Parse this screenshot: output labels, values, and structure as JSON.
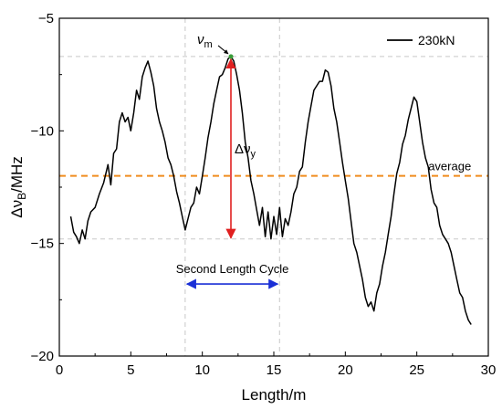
{
  "chart_data": {
    "type": "line",
    "xlabel": "Length/m",
    "ylabel": {
      "prefix": "Δν",
      "sub": "B",
      "suffix": "/MHz"
    },
    "xlim": [
      0,
      30
    ],
    "ylim": [
      -20,
      -5
    ],
    "xticks": [
      0,
      5,
      10,
      15,
      20,
      25,
      30
    ],
    "yticks": [
      -5,
      -10,
      -15,
      -20
    ],
    "grid": false,
    "legend": {
      "position": "top-right",
      "entries": [
        "230kN"
      ]
    },
    "series": [
      {
        "name": "230kN",
        "color": "#000000",
        "x": [
          0.8,
          1.0,
          1.2,
          1.4,
          1.6,
          1.8,
          2.0,
          2.2,
          2.5,
          2.8,
          3.1,
          3.4,
          3.6,
          3.8,
          4.0,
          4.2,
          4.4,
          4.6,
          4.8,
          5.0,
          5.2,
          5.4,
          5.6,
          5.8,
          6.0,
          6.2,
          6.4,
          6.6,
          6.8,
          7.0,
          7.2,
          7.4,
          7.6,
          7.8,
          8.0,
          8.2,
          8.4,
          8.6,
          8.8,
          9.0,
          9.2,
          9.4,
          9.6,
          9.8,
          10.0,
          10.2,
          10.4,
          10.6,
          10.8,
          11.0,
          11.2,
          11.4,
          11.6,
          11.8,
          12.0,
          12.2,
          12.4,
          12.6,
          12.8,
          13.0,
          13.2,
          13.4,
          13.6,
          13.8,
          14.0,
          14.2,
          14.4,
          14.6,
          14.8,
          15.0,
          15.2,
          15.4,
          15.6,
          15.8,
          16.0,
          16.2,
          16.4,
          16.6,
          16.8,
          17.0,
          17.2,
          17.4,
          17.6,
          17.8,
          18.0,
          18.2,
          18.4,
          18.6,
          18.8,
          19.0,
          19.2,
          19.4,
          19.6,
          19.8,
          20.0,
          20.2,
          20.4,
          20.6,
          20.8,
          21.0,
          21.2,
          21.4,
          21.6,
          21.8,
          22.0,
          22.2,
          22.4,
          22.6,
          22.8,
          23.0,
          23.2,
          23.4,
          23.6,
          23.8,
          24.0,
          24.2,
          24.4,
          24.6,
          24.8,
          25.0,
          25.2,
          25.4,
          25.6,
          25.8,
          26.0,
          26.2,
          26.4,
          26.6,
          26.8,
          27.0,
          27.2,
          27.4,
          27.6,
          27.8,
          28.0,
          28.2,
          28.4,
          28.6,
          28.8
        ],
        "y": [
          -13.8,
          -14.5,
          -14.7,
          -15.0,
          -14.4,
          -14.8,
          -14.0,
          -13.6,
          -13.4,
          -12.8,
          -12.3,
          -11.5,
          -12.4,
          -11.0,
          -10.8,
          -9.6,
          -9.2,
          -9.6,
          -9.4,
          -10.0,
          -9.2,
          -8.2,
          -8.6,
          -7.6,
          -7.2,
          -6.9,
          -7.4,
          -8.0,
          -9.0,
          -9.6,
          -10.0,
          -10.5,
          -11.2,
          -11.5,
          -12.0,
          -12.7,
          -13.2,
          -13.8,
          -14.4,
          -13.9,
          -13.4,
          -13.2,
          -12.5,
          -12.8,
          -12.0,
          -11.2,
          -10.3,
          -9.6,
          -8.8,
          -8.2,
          -7.6,
          -7.5,
          -7.2,
          -6.8,
          -6.7,
          -6.9,
          -7.5,
          -8.2,
          -9.2,
          -10.5,
          -11.2,
          -12.2,
          -12.8,
          -13.5,
          -14.2,
          -13.4,
          -14.7,
          -13.6,
          -14.8,
          -13.8,
          -14.6,
          -13.4,
          -14.7,
          -13.9,
          -14.2,
          -13.6,
          -12.8,
          -12.5,
          -11.8,
          -11.6,
          -10.5,
          -9.6,
          -8.9,
          -8.2,
          -8.0,
          -7.8,
          -7.8,
          -7.3,
          -7.4,
          -8.0,
          -9.0,
          -9.6,
          -10.5,
          -11.4,
          -12.2,
          -13.0,
          -14.0,
          -15.0,
          -15.4,
          -16.0,
          -16.6,
          -17.4,
          -17.8,
          -17.6,
          -18.0,
          -17.2,
          -16.8,
          -16.0,
          -15.4,
          -14.6,
          -13.8,
          -12.8,
          -11.9,
          -11.4,
          -10.6,
          -10.2,
          -9.5,
          -9.0,
          -8.5,
          -8.7,
          -9.6,
          -10.5,
          -11.2,
          -11.6,
          -12.6,
          -13.2,
          -13.4,
          -14.2,
          -14.6,
          -14.8,
          -15.0,
          -15.4,
          -16.0,
          -16.6,
          -17.2,
          -17.4,
          -18.0,
          -18.4,
          -18.6
        ]
      }
    ],
    "average": {
      "label": "average",
      "y": -12.0,
      "color": "#f08c1e"
    },
    "reference_lines": {
      "y": [
        -6.7,
        -14.8
      ],
      "x": [
        8.8,
        15.4
      ]
    },
    "annotations": {
      "peak_label": {
        "main": "ν",
        "sub": "m",
        "x": 12.0,
        "y": -6.7
      },
      "delta_label": {
        "prefix": "Δν",
        "sub": "y"
      },
      "delta_arrow": {
        "x": 12.0,
        "y_top": -6.7,
        "y_bottom": -14.8,
        "color": "#e02020"
      },
      "cycle_label": {
        "text": "Second Length Cycle"
      },
      "cycle_arrow": {
        "x_start": 8.8,
        "x_end": 15.4,
        "y": -16.8,
        "color": "#1a2fd6"
      }
    }
  }
}
